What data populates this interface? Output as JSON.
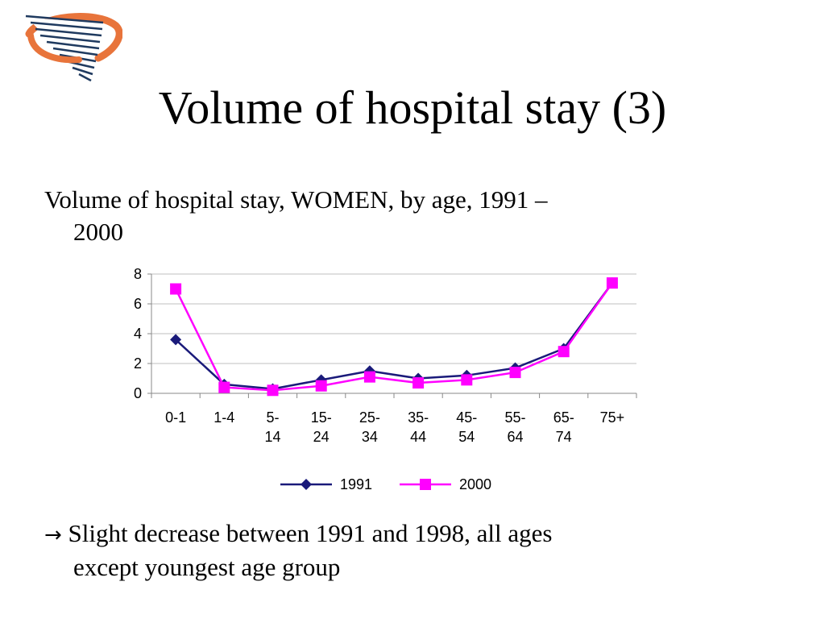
{
  "slide": {
    "title": "Volume of hospital stay (3)",
    "subtitle_line1": "Volume of hospital stay, WOMEN, by age, 1991 –",
    "subtitle_line2": "2000",
    "note_arrow": "→",
    "note_line1": " Slight decrease between 1991 and 1998, all ages",
    "note_line2": "except youngest age group",
    "logo_icon": "swoosh-logo-icon"
  },
  "chart_data": {
    "type": "line",
    "categories": [
      [
        "0-1"
      ],
      [
        "1-4"
      ],
      [
        "5-",
        "14"
      ],
      [
        "15-",
        "24"
      ],
      [
        "25-",
        "34"
      ],
      [
        "35-",
        "44"
      ],
      [
        "45-",
        "54"
      ],
      [
        "55-",
        "64"
      ],
      [
        "65-",
        "74"
      ],
      [
        "75+"
      ]
    ],
    "y_ticks": [
      "0",
      "2",
      "4",
      "6",
      "8"
    ],
    "ylim": [
      0,
      8
    ],
    "grid": true,
    "legend_position": "bottom",
    "series": [
      {
        "name": "1991",
        "color": "#1a1a7a",
        "marker": "diamond",
        "values": [
          3.6,
          0.6,
          0.3,
          0.9,
          1.5,
          1.0,
          1.2,
          1.7,
          3.0,
          7.4
        ]
      },
      {
        "name": "2000",
        "color": "#ff00ff",
        "marker": "square",
        "values": [
          7.0,
          0.4,
          0.2,
          0.5,
          1.1,
          0.7,
          0.9,
          1.4,
          2.8,
          7.4
        ]
      }
    ]
  }
}
